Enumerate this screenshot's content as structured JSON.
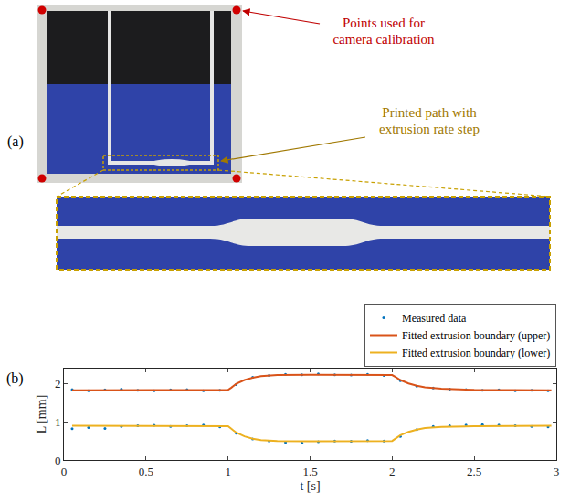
{
  "figure": {
    "panel_a": {
      "label": "(a)",
      "callouts": [
        {
          "text": "Points used for camera calibration",
          "color": "#c00000"
        },
        {
          "text": "Printed path with extrusion rate step",
          "color": "#a07800"
        }
      ]
    },
    "panel_b": {
      "label": "(b)"
    }
  },
  "chart_data": {
    "type": "line",
    "xlabel": "t [s]",
    "ylabel": "L [mm]",
    "xlim": [
      0,
      3
    ],
    "xticks": [
      0,
      0.5,
      1,
      1.5,
      2,
      2.5,
      3
    ],
    "ylim": [
      0,
      2.4
    ],
    "yticks": [
      0,
      1,
      2
    ],
    "grid": false,
    "legend": "top right",
    "series": [
      {
        "name": "Measured data",
        "type": "scatter",
        "marker": "dot",
        "color": "#0072bd",
        "x": [
          0.05,
          0.15,
          0.25,
          0.35,
          0.45,
          0.55,
          0.65,
          0.75,
          0.85,
          0.95,
          1.05,
          1.15,
          1.25,
          1.35,
          1.45,
          1.55,
          1.65,
          1.75,
          1.85,
          1.95,
          2.05,
          2.15,
          2.25,
          2.35,
          2.45,
          2.55,
          2.65,
          2.75,
          2.85,
          2.95,
          0.05,
          0.15,
          0.25,
          0.35,
          0.45,
          0.55,
          0.65,
          0.75,
          0.85,
          0.95,
          1.05,
          1.15,
          1.25,
          1.35,
          1.45,
          1.55,
          1.65,
          1.75,
          1.85,
          1.95,
          2.05,
          2.15,
          2.25,
          2.35,
          2.45,
          2.55,
          2.65,
          2.75,
          2.85,
          2.95
        ],
        "values": [
          1.85,
          1.82,
          1.84,
          1.86,
          1.83,
          1.82,
          1.84,
          1.85,
          1.82,
          1.83,
          1.98,
          2.17,
          2.22,
          2.25,
          2.24,
          2.26,
          2.24,
          2.23,
          2.25,
          2.22,
          2.08,
          1.94,
          1.89,
          1.86,
          1.85,
          1.83,
          1.84,
          1.82,
          1.83,
          1.82,
          0.82,
          0.85,
          0.83,
          0.88,
          0.9,
          0.91,
          0.88,
          0.9,
          0.92,
          0.87,
          0.7,
          0.55,
          0.5,
          0.46,
          0.45,
          0.48,
          0.5,
          0.49,
          0.51,
          0.5,
          0.62,
          0.8,
          0.88,
          0.9,
          0.92,
          0.93,
          0.92,
          0.9,
          0.88,
          0.87
        ]
      },
      {
        "name": "Fitted extrusion boundary (upper)",
        "type": "line",
        "line_style": "solid",
        "color": "#d95319",
        "x": [
          0.05,
          0.5,
          0.9,
          1.0,
          1.02,
          1.05,
          1.1,
          1.15,
          1.2,
          1.3,
          1.5,
          1.8,
          2.0,
          2.02,
          2.05,
          2.1,
          2.15,
          2.2,
          2.3,
          2.5,
          2.7,
          2.97
        ],
        "values": [
          1.83,
          1.83,
          1.83,
          1.84,
          1.9,
          2.0,
          2.1,
          2.16,
          2.2,
          2.23,
          2.24,
          2.24,
          2.23,
          2.18,
          2.1,
          2.01,
          1.95,
          1.91,
          1.87,
          1.84,
          1.83,
          1.83
        ]
      },
      {
        "name": "Fitted extrusion boundary (lower)",
        "type": "line",
        "line_style": "solid",
        "color": "#edb120",
        "x": [
          0.05,
          0.5,
          0.9,
          1.0,
          1.02,
          1.05,
          1.1,
          1.15,
          1.2,
          1.3,
          1.5,
          1.8,
          2.0,
          2.02,
          2.05,
          2.1,
          2.15,
          2.2,
          2.3,
          2.5,
          2.7,
          2.97
        ],
        "values": [
          0.9,
          0.9,
          0.9,
          0.89,
          0.82,
          0.72,
          0.62,
          0.56,
          0.52,
          0.5,
          0.49,
          0.49,
          0.5,
          0.56,
          0.65,
          0.74,
          0.8,
          0.84,
          0.87,
          0.89,
          0.9,
          0.9
        ]
      }
    ]
  }
}
